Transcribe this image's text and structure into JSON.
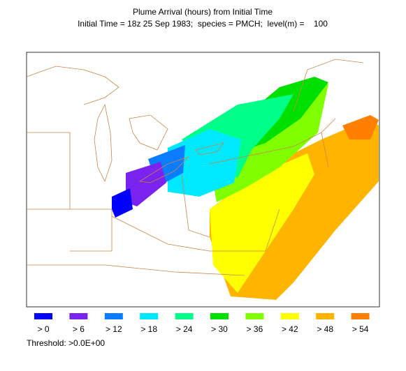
{
  "title": "Plume Arrival (hours) from Initial Time",
  "subtitle": "Initial Time = 18z 25 Sep 1983;  species = PMCH;  level(m) =    100",
  "legend": [
    {
      "label": "> 0",
      "color": "#0000ff"
    },
    {
      "label": "> 6",
      "color": "#7a22ee"
    },
    {
      "label": "> 12",
      "color": "#0a7cff"
    },
    {
      "label": "> 18",
      "color": "#00e8ff"
    },
    {
      "label": "> 24",
      "color": "#00ff88"
    },
    {
      "label": "> 30",
      "color": "#00e000"
    },
    {
      "label": "> 36",
      "color": "#80ff00"
    },
    {
      "label": "> 42",
      "color": "#ffff00"
    },
    {
      "label": "> 48",
      "color": "#ffb400"
    },
    {
      "label": "> 54",
      "color": "#ff8000"
    }
  ],
  "threshold": "Threshold: >0.0E+00"
}
